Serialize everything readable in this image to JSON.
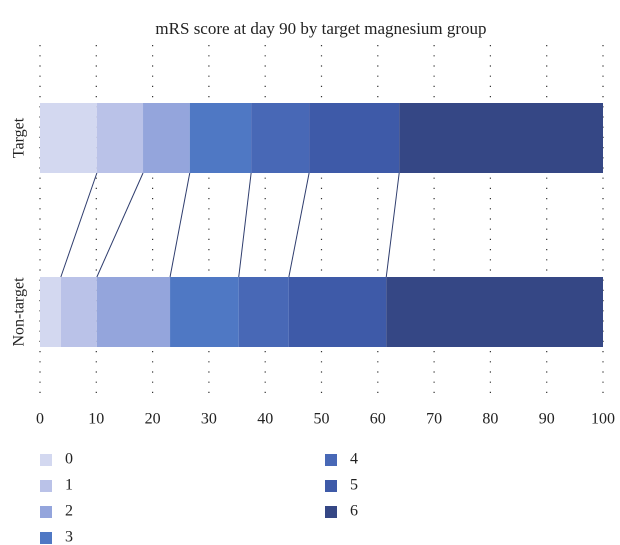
{
  "chart_data": {
    "type": "stacked-barh",
    "title": "mRS score at day 90 by target magnesium group",
    "categories": [
      "Target",
      "Non-target"
    ],
    "series": [
      {
        "name": "0",
        "color": "#d3d8f0",
        "values": [
          10.1,
          3.7
        ]
      },
      {
        "name": "1",
        "color": "#bac2e8",
        "values": [
          8.2,
          6.4
        ]
      },
      {
        "name": "2",
        "color": "#94a5dc",
        "values": [
          8.3,
          13.0
        ]
      },
      {
        "name": "3",
        "color": "#4f78c4",
        "values": [
          10.9,
          12.2
        ]
      },
      {
        "name": "4",
        "color": "#4868b6",
        "values": [
          10.3,
          8.9
        ]
      },
      {
        "name": "5",
        "color": "#3e5aa8",
        "values": [
          16.0,
          17.3
        ]
      },
      {
        "name": "6",
        "color": "#354785",
        "values": [
          36.2,
          38.5
        ]
      }
    ],
    "xlim": [
      0,
      100
    ],
    "xticks": [
      0,
      10,
      20,
      30,
      40,
      50,
      60,
      70,
      80,
      90,
      100
    ],
    "grid": true
  }
}
